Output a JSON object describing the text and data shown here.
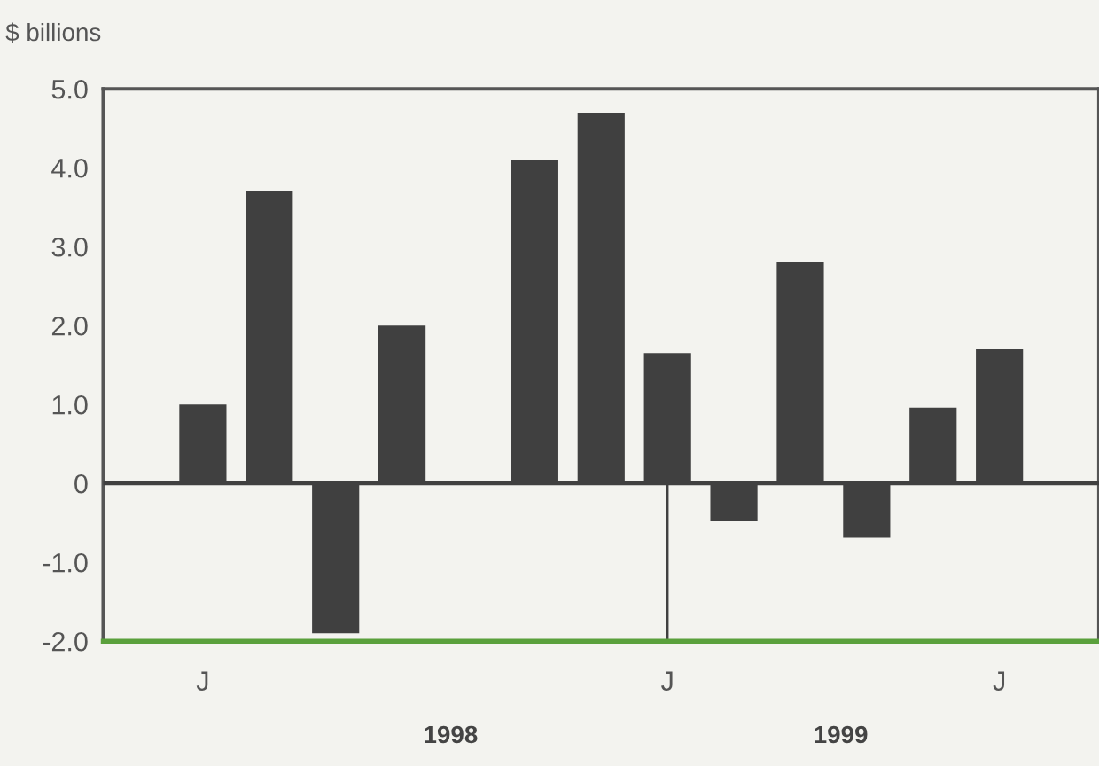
{
  "chart_data": {
    "type": "bar",
    "ylabel": "$ billions",
    "categories": [
      "J",
      null,
      null,
      null,
      null,
      null,
      null,
      "J",
      null,
      null,
      null,
      null,
      "J"
    ],
    "values": [
      1.0,
      3.7,
      -1.9,
      2.0,
      0,
      4.1,
      4.7,
      1.65,
      -0.48,
      2.8,
      -0.69,
      0.96,
      1.7
    ],
    "color": "#404040",
    "ylim": [
      -2,
      5
    ],
    "yticks": [
      {
        "value": 5,
        "label": "5.0"
      },
      {
        "value": 4,
        "label": "4.0"
      },
      {
        "value": 3,
        "label": "3.0"
      },
      {
        "value": 2,
        "label": "2.0"
      },
      {
        "value": 1,
        "label": "1.0"
      },
      0,
      {
        "value": -1,
        "label": "-1.0"
      },
      {
        "value": -2,
        "label": "-2.0"
      }
    ],
    "ref_lines": [
      {
        "axis": "y",
        "value": 0,
        "color": "#404040"
      }
    ],
    "annotations": [
      "1998",
      "1999"
    ],
    "grid": false,
    "legend": false
  }
}
